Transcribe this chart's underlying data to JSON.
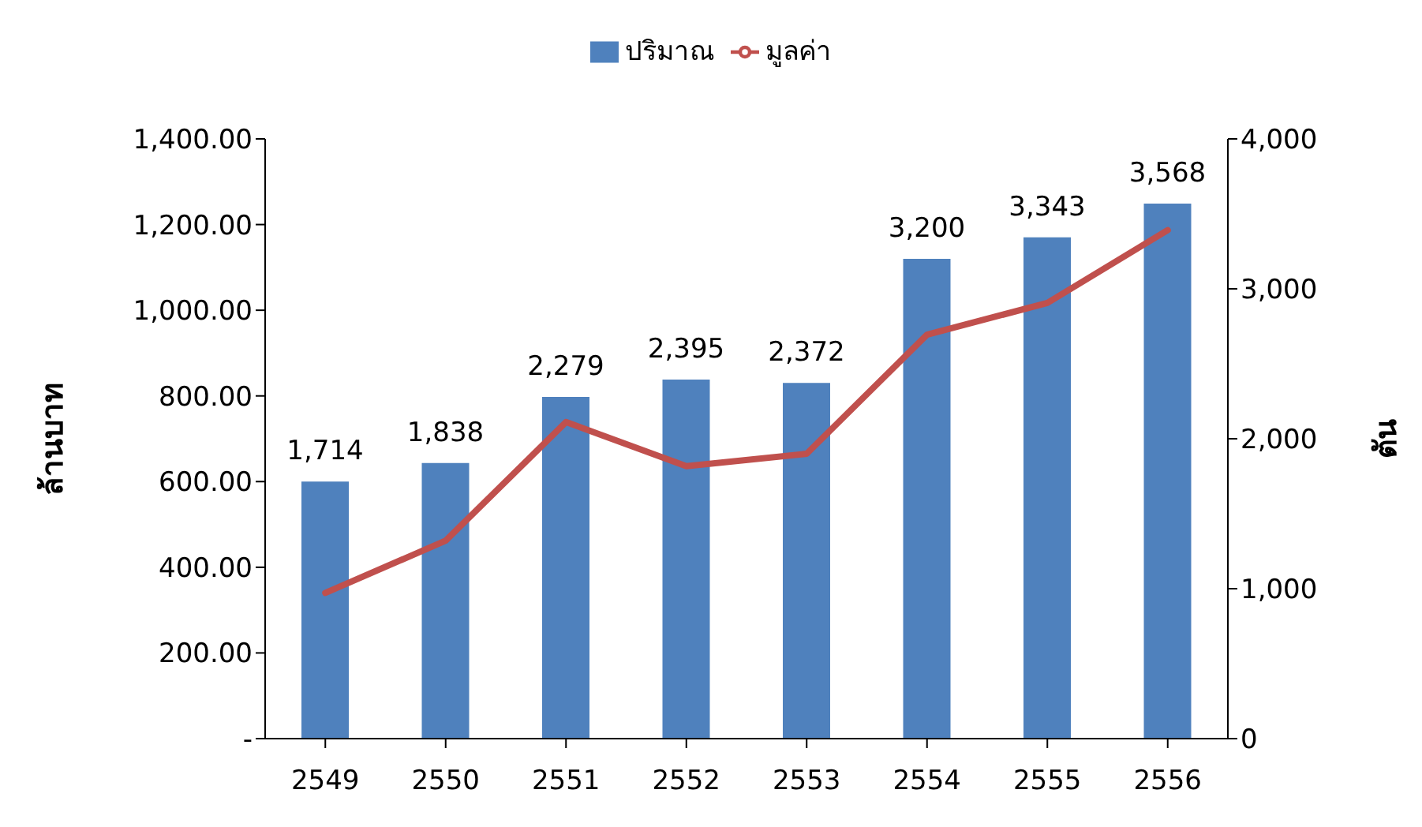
{
  "chart_data": {
    "type": "bar",
    "categories": [
      "2549",
      "2550",
      "2551",
      "2552",
      "2553",
      "2554",
      "2555",
      "2556"
    ],
    "ylabel": "ล้านบาท",
    "y2label": "ตัน",
    "series": [
      {
        "name": "ปริมาณ",
        "axis": "y2",
        "color": "#4f81bd",
        "values": [
          1714,
          1838,
          2279,
          2395,
          2372,
          3200,
          3343,
          3568
        ],
        "value_labels": [
          "1,714",
          "1,838",
          "2,279",
          "2,395",
          "2,372",
          "3,200",
          "3,343",
          "3,568"
        ]
      },
      {
        "name": "มูลค่า",
        "type": "line",
        "axis": "y",
        "color": "#c0504d",
        "values": [
          340,
          462,
          739,
          636,
          665,
          943,
          1017,
          1187
        ]
      }
    ],
    "ylim": [
      0,
      1400
    ],
    "yticks": [
      {
        "value": 0,
        "label": "-"
      },
      {
        "value": 200,
        "label": "200.00"
      },
      {
        "value": 400,
        "label": "400.00"
      },
      {
        "value": 600,
        "label": "600.00"
      },
      {
        "value": 800,
        "label": "800.00"
      },
      {
        "value": 1000,
        "label": "1,000.00"
      },
      {
        "value": 1200,
        "label": "1,200.00"
      },
      {
        "value": 1400,
        "label": "1,400.00"
      }
    ],
    "y2lim": [
      0,
      4000
    ],
    "y2ticks": [
      0,
      {
        "value": 1000,
        "label": "1,000"
      },
      {
        "value": 2000,
        "label": "2,000"
      },
      {
        "value": 3000,
        "label": "3,000"
      },
      {
        "value": 4000,
        "label": "4,000"
      }
    ],
    "legend": "top",
    "grid": false,
    "marker": "none",
    "line_style": "solid"
  }
}
